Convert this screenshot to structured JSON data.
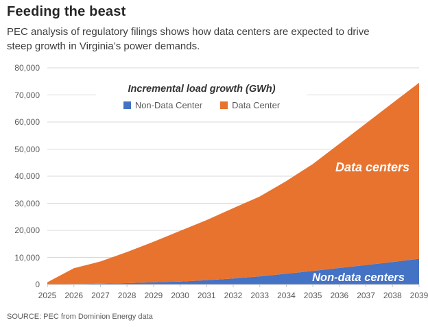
{
  "header": {
    "title": "Feeding the beast",
    "subtitle": "PEC analysis of regulatory filings shows how data centers are expected to drive steep growth in Virginia’s power demands."
  },
  "chart_data": {
    "type": "area",
    "stacked": true,
    "legend_title": "Incremental load growth (GWh)",
    "legend_position": "top-inside",
    "grid": true,
    "x": [
      2025,
      2026,
      2027,
      2028,
      2029,
      2030,
      2031,
      2032,
      2033,
      2034,
      2035,
      2036,
      2037,
      2038,
      2039
    ],
    "series": [
      {
        "name": "Non-Data Center",
        "color": "#4472C4",
        "values": [
          50,
          150,
          300,
          500,
          800,
          1100,
          1600,
          2200,
          3000,
          4000,
          5000,
          6100,
          7200,
          8300,
          9500
        ]
      },
      {
        "name": "Data Center",
        "color": "#E8732E",
        "values": [
          750,
          5850,
          8200,
          11500,
          15000,
          18700,
          22200,
          26000,
          29500,
          34200,
          39500,
          45900,
          52300,
          58700,
          65000
        ]
      }
    ],
    "ylim": [
      0,
      80000
    ],
    "yticks": [
      0,
      10000,
      20000,
      30000,
      40000,
      50000,
      60000,
      70000,
      80000
    ],
    "ytick_labels": [
      "0",
      "10,000",
      "20,000",
      "30,000",
      "40,000",
      "50,000",
      "60,000",
      "70,000",
      "80,000"
    ],
    "area_labels": [
      "Data centers",
      "Non-data centers"
    ],
    "grid_color": "#d9d9d9",
    "axis_color": "#c6c6c6",
    "tick_text_color": "#595959"
  },
  "source": "SOURCE: PEC from Dominion Energy data"
}
